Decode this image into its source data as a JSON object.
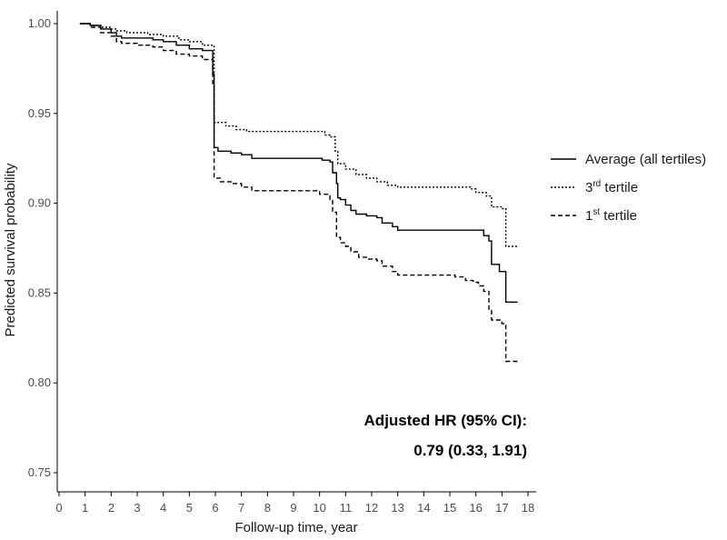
{
  "chart_data": {
    "type": "line",
    "step": true,
    "xlabel": "Follow-up time, year",
    "ylabel": "Predicted survival probability",
    "xlim": [
      0,
      18
    ],
    "ylim": [
      0.75,
      1.0
    ],
    "xticks": [
      "0",
      "1",
      "2",
      "3",
      "4",
      "5",
      "6",
      "7",
      "8",
      "9",
      "10",
      "11",
      "12",
      "13",
      "14",
      "15",
      "16",
      "17",
      "18"
    ],
    "yticks": [
      "0.75",
      "0.80",
      "0.85",
      "0.90",
      "0.95",
      "1.00"
    ],
    "grid": false,
    "legend_position": "right",
    "annotation": {
      "line1": "Adjusted HR (95% CI):",
      "line2": "0.79 (0.33, 1.91)"
    },
    "series": [
      {
        "name": "Average (all tertiles)",
        "legend_parts": [
          "",
          "",
          "Average (all tertiles)"
        ],
        "style": "solid",
        "color": "#000000",
        "points": [
          [
            0.8,
            1.0
          ],
          [
            1.2,
            0.999
          ],
          [
            1.6,
            0.997
          ],
          [
            2.0,
            0.995
          ],
          [
            2.2,
            0.993
          ],
          [
            2.4,
            0.992
          ],
          [
            3.0,
            0.992
          ],
          [
            3.6,
            0.991
          ],
          [
            4.0,
            0.99
          ],
          [
            4.5,
            0.988
          ],
          [
            5.0,
            0.986
          ],
          [
            5.5,
            0.985
          ],
          [
            5.9,
            0.984
          ],
          [
            5.9,
            0.972
          ],
          [
            5.95,
            0.958
          ],
          [
            5.95,
            0.931
          ],
          [
            6.1,
            0.929
          ],
          [
            6.6,
            0.928
          ],
          [
            7.0,
            0.927
          ],
          [
            7.4,
            0.925
          ],
          [
            10.0,
            0.925
          ],
          [
            10.1,
            0.924
          ],
          [
            10.4,
            0.923
          ],
          [
            10.5,
            0.917
          ],
          [
            10.65,
            0.911
          ],
          [
            10.7,
            0.903
          ],
          [
            10.8,
            0.902
          ],
          [
            11.0,
            0.899
          ],
          [
            11.2,
            0.896
          ],
          [
            11.4,
            0.894
          ],
          [
            11.8,
            0.893
          ],
          [
            12.2,
            0.892
          ],
          [
            12.4,
            0.889
          ],
          [
            12.8,
            0.887
          ],
          [
            13.0,
            0.885
          ],
          [
            14.0,
            0.885
          ],
          [
            15.0,
            0.885
          ],
          [
            16.0,
            0.885
          ],
          [
            16.3,
            0.882
          ],
          [
            16.5,
            0.879
          ],
          [
            16.6,
            0.866
          ],
          [
            16.9,
            0.862
          ],
          [
            17.1,
            0.862
          ],
          [
            17.15,
            0.845
          ],
          [
            17.6,
            0.845
          ]
        ]
      },
      {
        "name": "3rd tertile",
        "legend_parts": [
          "3",
          "rd",
          " tertile"
        ],
        "style": "dotted",
        "color": "#000000",
        "points": [
          [
            0.8,
            1.0
          ],
          [
            1.2,
            0.999
          ],
          [
            1.6,
            0.998
          ],
          [
            2.0,
            0.997
          ],
          [
            2.2,
            0.996
          ],
          [
            2.6,
            0.995
          ],
          [
            3.4,
            0.994
          ],
          [
            4.0,
            0.993
          ],
          [
            4.6,
            0.991
          ],
          [
            5.0,
            0.99
          ],
          [
            5.5,
            0.988
          ],
          [
            5.95,
            0.987
          ],
          [
            5.95,
            0.945
          ],
          [
            6.4,
            0.943
          ],
          [
            6.8,
            0.941
          ],
          [
            7.2,
            0.94
          ],
          [
            10.0,
            0.94
          ],
          [
            10.2,
            0.938
          ],
          [
            10.4,
            0.937
          ],
          [
            10.6,
            0.929
          ],
          [
            10.7,
            0.922
          ],
          [
            11.0,
            0.919
          ],
          [
            11.4,
            0.916
          ],
          [
            11.8,
            0.914
          ],
          [
            12.2,
            0.912
          ],
          [
            12.6,
            0.91
          ],
          [
            13.0,
            0.909
          ],
          [
            14.0,
            0.909
          ],
          [
            15.0,
            0.909
          ],
          [
            15.8,
            0.908
          ],
          [
            16.0,
            0.906
          ],
          [
            16.4,
            0.904
          ],
          [
            16.6,
            0.898
          ],
          [
            17.0,
            0.897
          ],
          [
            17.15,
            0.876
          ],
          [
            17.6,
            0.876
          ]
        ]
      },
      {
        "name": "1st tertile",
        "legend_parts": [
          "1",
          "st",
          " tertile"
        ],
        "style": "dashed",
        "color": "#000000",
        "points": [
          [
            0.8,
            1.0
          ],
          [
            1.2,
            0.998
          ],
          [
            1.6,
            0.995
          ],
          [
            2.0,
            0.993
          ],
          [
            2.2,
            0.99
          ],
          [
            2.4,
            0.989
          ],
          [
            3.0,
            0.988
          ],
          [
            3.6,
            0.987
          ],
          [
            4.0,
            0.985
          ],
          [
            4.5,
            0.983
          ],
          [
            5.0,
            0.982
          ],
          [
            5.5,
            0.98
          ],
          [
            5.9,
            0.979
          ],
          [
            5.9,
            0.965
          ],
          [
            5.95,
            0.95
          ],
          [
            5.95,
            0.914
          ],
          [
            6.2,
            0.912
          ],
          [
            6.6,
            0.911
          ],
          [
            7.0,
            0.909
          ],
          [
            7.4,
            0.907
          ],
          [
            9.8,
            0.907
          ],
          [
            10.0,
            0.905
          ],
          [
            10.4,
            0.902
          ],
          [
            10.5,
            0.895
          ],
          [
            10.65,
            0.881
          ],
          [
            10.8,
            0.878
          ],
          [
            11.0,
            0.876
          ],
          [
            11.2,
            0.873
          ],
          [
            11.5,
            0.87
          ],
          [
            11.8,
            0.869
          ],
          [
            12.2,
            0.868
          ],
          [
            12.4,
            0.865
          ],
          [
            12.8,
            0.862
          ],
          [
            13.0,
            0.86
          ],
          [
            14.0,
            0.86
          ],
          [
            15.0,
            0.86
          ],
          [
            15.2,
            0.859
          ],
          [
            15.6,
            0.857
          ],
          [
            15.9,
            0.856
          ],
          [
            16.1,
            0.854
          ],
          [
            16.3,
            0.851
          ],
          [
            16.5,
            0.841
          ],
          [
            16.6,
            0.835
          ],
          [
            17.0,
            0.833
          ],
          [
            17.15,
            0.812
          ],
          [
            17.6,
            0.812
          ]
        ]
      }
    ]
  }
}
